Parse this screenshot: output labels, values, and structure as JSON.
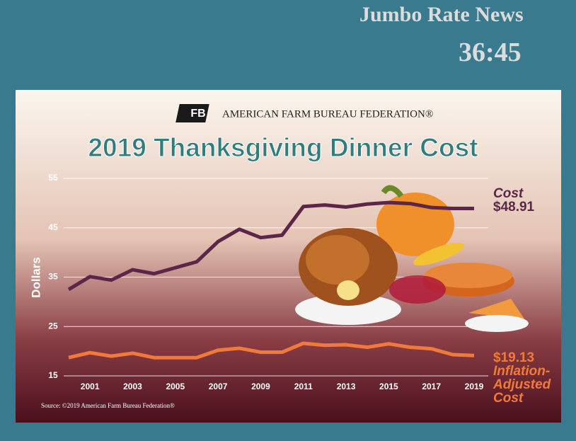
{
  "header": {
    "brand": "Jumbo Rate News",
    "timer": "36:45"
  },
  "chart_data": {
    "type": "line",
    "publisher": "AMERICAN FARM BUREAU FEDERATION®",
    "title": "2019 Thanksgiving Dinner Cost",
    "y_label": "Dollars",
    "source": "Source: ©2019 American Farm Bureau Federation®",
    "x": [
      2000,
      2001,
      2002,
      2003,
      2004,
      2005,
      2006,
      2007,
      2008,
      2009,
      2010,
      2011,
      2012,
      2013,
      2014,
      2015,
      2016,
      2017,
      2018,
      2019
    ],
    "xlim": [
      2000,
      2019
    ],
    "xticks": [
      2001,
      2003,
      2005,
      2007,
      2009,
      2011,
      2013,
      2015,
      2017,
      2019
    ],
    "ylim": [
      15,
      55
    ],
    "yticks": [
      15,
      25,
      35,
      45,
      55
    ],
    "grid": true,
    "series": [
      {
        "name": "Cost",
        "color": "#5c2648",
        "values": [
          32.5,
          35.1,
          34.4,
          36.5,
          35.7,
          36.9,
          38.1,
          42.2,
          44.7,
          43.0,
          43.5,
          49.3,
          49.6,
          49.2,
          49.8,
          50.1,
          49.9,
          49.1,
          48.9,
          48.91
        ],
        "value_labels": [
          null,
          null,
          null,
          null,
          null,
          null,
          null,
          null,
          null,
          null,
          null,
          null,
          null,
          null,
          null,
          null,
          null,
          null,
          null,
          "$48.91"
        ]
      },
      {
        "name": "Inflation-Adjusted Cost",
        "color": "#f07a3c",
        "values": [
          18.7,
          19.7,
          19.0,
          19.6,
          18.7,
          18.7,
          18.7,
          20.2,
          20.6,
          19.8,
          19.8,
          21.6,
          21.2,
          21.3,
          20.8,
          21.5,
          20.8,
          20.5,
          19.3,
          19.13
        ],
        "value_labels": [
          null,
          null,
          null,
          null,
          null,
          null,
          null,
          null,
          null,
          null,
          null,
          null,
          null,
          null,
          null,
          null,
          null,
          null,
          null,
          "$19.13"
        ]
      }
    ]
  }
}
